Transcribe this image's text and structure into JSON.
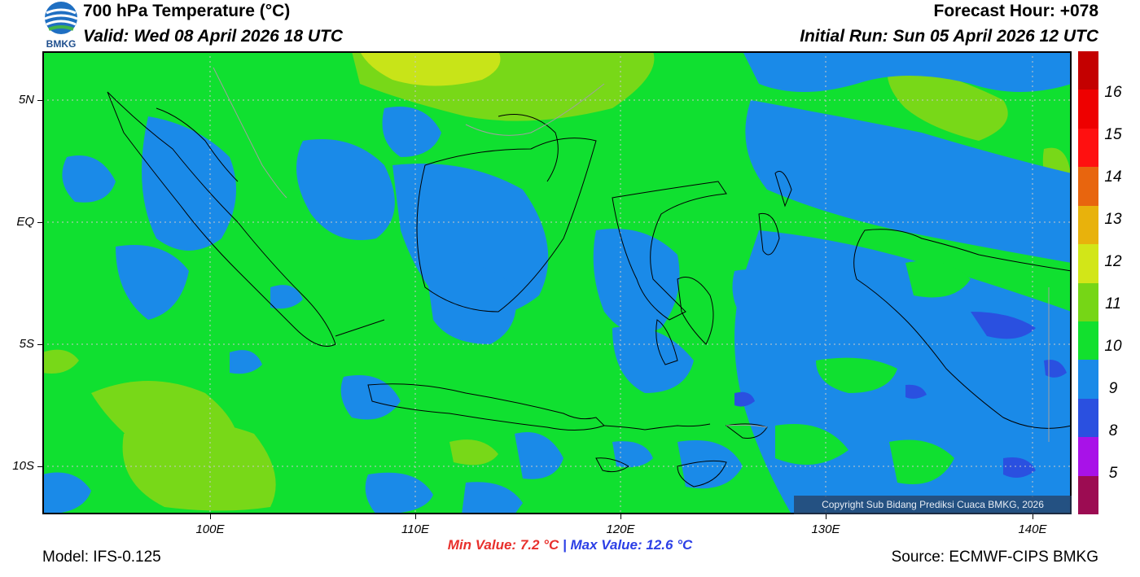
{
  "header": {
    "title": "700 hPa Temperature (°C)",
    "valid": "Valid: Wed 08 April 2026 18 UTC",
    "forecast_hour": "Forecast Hour: +078",
    "initial_run": "Initial Run: Sun 05 April 2026 12 UTC"
  },
  "logo": {
    "text": "BMKG"
  },
  "map": {
    "lat_labels": [
      "5N",
      "EQ",
      "5S",
      "10S"
    ],
    "lon_labels": [
      "100E",
      "110E",
      "120E",
      "130E",
      "140E"
    ],
    "copyright": "Copyright Sub Bidang Prediksi Cuaca BMKG, 2026",
    "gridlines": true,
    "colors": {
      "ocean_base": "#10e030",
      "cool_9_10": "#1a8ae8",
      "cold_8_9": "#2a50e0",
      "warm_11_12": "#78d818",
      "warm_12_13": "#c8e418",
      "coastline": "#000000",
      "border_gray": "#a0a0a0"
    }
  },
  "colorbar": {
    "labels": [
      "16",
      "15",
      "14",
      "13",
      "12",
      "11",
      "10",
      "9",
      "8",
      "5"
    ],
    "colors": [
      "#c40000",
      "#ee0000",
      "#ff1010",
      "#e8650e",
      "#e8b20c",
      "#d2e618",
      "#76d616",
      "#12e02e",
      "#1a8ae8",
      "#2a50e0",
      "#a812e8",
      "#9c0c52"
    ]
  },
  "stats": {
    "min_label": "Min Value: 7.2 °C",
    "separator": "|",
    "max_label": "Max Value: 12.6 °C"
  },
  "footer": {
    "model": "Model: IFS-0.125",
    "source": "Source: ECMWF-CIPS BMKG"
  }
}
